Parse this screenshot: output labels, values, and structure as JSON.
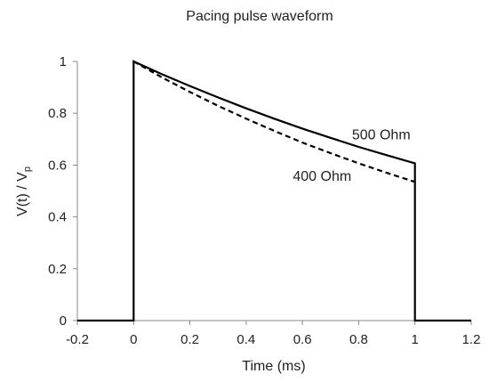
{
  "chart_data": {
    "type": "line",
    "title": "Pacing pulse waveform",
    "xlabel": "Time (ms)",
    "ylabel_main": "V(t) / V",
    "ylabel_sub": "p",
    "xlim": [
      -0.2,
      1.2
    ],
    "ylim": [
      0,
      1
    ],
    "x_ticks": [
      -0.2,
      0,
      0.2,
      0.4,
      0.6,
      0.8,
      1,
      1.2
    ],
    "x_tick_labels": [
      "-0.2",
      "0",
      "0.2",
      "0.4",
      "0.6",
      "0.8",
      "1",
      "1.2"
    ],
    "y_ticks": [
      0,
      0.2,
      0.4,
      0.6,
      0.8,
      1
    ],
    "y_tick_labels": [
      "0",
      "0.2",
      "0.4",
      "0.6",
      "0.8",
      "1"
    ],
    "grid": false,
    "series": [
      {
        "name": "500 Ohm",
        "style": "solid",
        "color": "#000000",
        "x": [
          -0.2,
          0,
          0,
          0.1,
          0.2,
          0.3,
          0.4,
          0.5,
          0.6,
          0.7,
          0.8,
          0.9,
          1,
          1,
          1.2
        ],
        "y": [
          0,
          0,
          1,
          0.951,
          0.905,
          0.861,
          0.819,
          0.779,
          0.741,
          0.705,
          0.67,
          0.638,
          0.607,
          0,
          0
        ]
      },
      {
        "name": "400 Ohm",
        "style": "dashed",
        "color": "#000000",
        "x": [
          0,
          0.1,
          0.2,
          0.3,
          0.4,
          0.5,
          0.6,
          0.7,
          0.8,
          0.9,
          1
        ],
        "y": [
          1,
          0.939,
          0.882,
          0.829,
          0.779,
          0.732,
          0.687,
          0.646,
          0.607,
          0.57,
          0.535
        ]
      }
    ],
    "annotations": [
      {
        "text": "500 Ohm",
        "x": 0.88,
        "y": 0.7
      },
      {
        "text": "400 Ohm",
        "x": 0.67,
        "y": 0.54
      }
    ]
  }
}
